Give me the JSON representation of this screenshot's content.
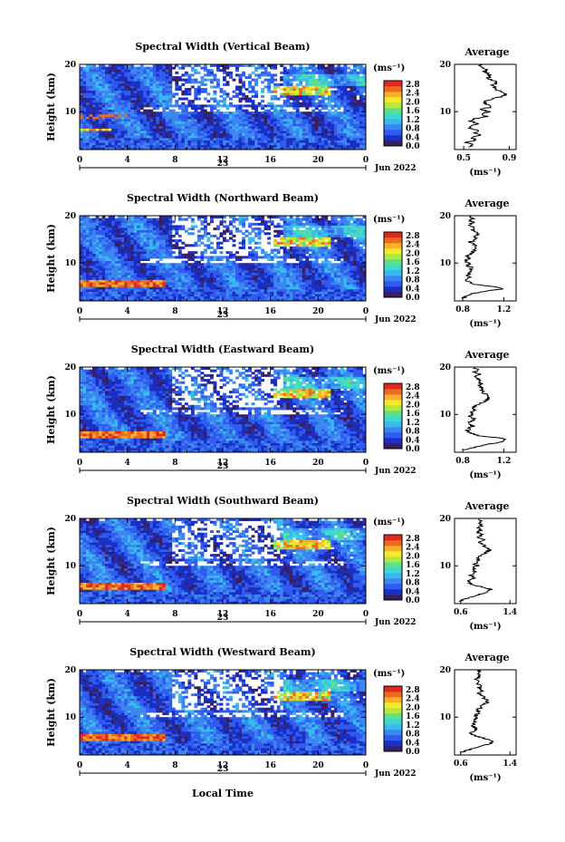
{
  "figure": {
    "x_label": "Local Time",
    "date_label": "Jun 2022",
    "day_label": "23"
  },
  "colorbar": {
    "unit": "(ms⁻¹)",
    "ticks": [
      "2.8",
      "2.4",
      "2.0",
      "1.6",
      "1.2",
      "0.8",
      "0.4",
      "0.0"
    ],
    "colors": [
      "#3a1f5e",
      "#1a2fc4",
      "#2f5bf0",
      "#3d86f2",
      "#38b9ef",
      "#3fd8d0",
      "#5ee08a",
      "#b4e83c",
      "#f2ea2c",
      "#f7b02a",
      "#f06a1e",
      "#e02a20"
    ]
  },
  "chart_data": [
    {
      "type": "heatmap",
      "title": "Spectral Width (Vertical Beam)",
      "ylabel": "Height (km)",
      "x_ticks": [
        "0",
        "4",
        "8",
        "12",
        "16",
        "20",
        "0"
      ],
      "y_ticks": [
        "20",
        "10"
      ],
      "xlim": [
        0,
        24
      ],
      "ylim": [
        2,
        20
      ],
      "average": {
        "title": "Average",
        "xlabel": "(ms⁻¹)",
        "x_ticks": [
          "0.5",
          "0.9"
        ],
        "y_ticks": [
          "20",
          "10"
        ],
        "xlim": [
          0.42,
          0.96
        ],
        "profile": [
          [
            2.5,
            0.55
          ],
          [
            3,
            0.58
          ],
          [
            3.5,
            0.52
          ],
          [
            4,
            0.62
          ],
          [
            4.5,
            0.56
          ],
          [
            5,
            0.66
          ],
          [
            5.5,
            0.6
          ],
          [
            6,
            0.64
          ],
          [
            6.5,
            0.55
          ],
          [
            7,
            0.58
          ],
          [
            7.5,
            0.62
          ],
          [
            8,
            0.56
          ],
          [
            8.5,
            0.6
          ],
          [
            9,
            0.7
          ],
          [
            9.5,
            0.66
          ],
          [
            10,
            0.72
          ],
          [
            10.5,
            0.65
          ],
          [
            11,
            0.74
          ],
          [
            11.5,
            0.7
          ],
          [
            12,
            0.68
          ],
          [
            12.5,
            0.72
          ],
          [
            13,
            0.8
          ],
          [
            13.5,
            0.88
          ],
          [
            14,
            0.84
          ],
          [
            14.5,
            0.8
          ],
          [
            15,
            0.78
          ],
          [
            15.5,
            0.74
          ],
          [
            16,
            0.8
          ],
          [
            16.5,
            0.76
          ],
          [
            17,
            0.7
          ],
          [
            17.5,
            0.74
          ],
          [
            18,
            0.72
          ],
          [
            18.5,
            0.68
          ],
          [
            19,
            0.7
          ],
          [
            19.5,
            0.66
          ],
          [
            20,
            0.64
          ]
        ]
      }
    },
    {
      "type": "heatmap",
      "title": "Spectral Width (Northward Beam)",
      "ylabel": "Height (km)",
      "x_ticks": [
        "0",
        "4",
        "8",
        "12",
        "16",
        "20",
        "0"
      ],
      "y_ticks": [
        "20",
        "10"
      ],
      "xlim": [
        0,
        24
      ],
      "ylim": [
        2,
        20
      ],
      "average": {
        "title": "Average",
        "xlabel": "(ms⁻¹)",
        "x_ticks": [
          "0.8",
          "1.2"
        ],
        "y_ticks": [
          "20",
          "10"
        ],
        "xlim": [
          0.72,
          1.32
        ],
        "profile": [
          [
            2.5,
            0.8
          ],
          [
            3,
            0.84
          ],
          [
            3.5,
            0.9
          ],
          [
            4,
            1.0
          ],
          [
            4.5,
            1.2
          ],
          [
            5,
            1.1
          ],
          [
            5.5,
            0.92
          ],
          [
            6,
            0.86
          ],
          [
            6.5,
            0.82
          ],
          [
            7,
            0.86
          ],
          [
            7.5,
            0.84
          ],
          [
            8,
            0.88
          ],
          [
            8.5,
            0.86
          ],
          [
            9,
            0.9
          ],
          [
            9.5,
            0.84
          ],
          [
            10,
            0.86
          ],
          [
            10.5,
            0.82
          ],
          [
            11,
            0.86
          ],
          [
            11.5,
            0.84
          ],
          [
            12,
            0.88
          ],
          [
            12.5,
            0.9
          ],
          [
            13,
            0.94
          ],
          [
            13.5,
            0.92
          ],
          [
            14,
            0.9
          ],
          [
            14.5,
            0.88
          ],
          [
            15,
            0.94
          ],
          [
            15.5,
            0.9
          ],
          [
            16,
            0.96
          ],
          [
            16.5,
            0.92
          ],
          [
            17,
            0.9
          ],
          [
            17.5,
            0.92
          ],
          [
            18,
            0.88
          ],
          [
            18.5,
            0.9
          ],
          [
            19,
            0.86
          ],
          [
            19.5,
            0.9
          ],
          [
            20,
            0.88
          ]
        ]
      }
    },
    {
      "type": "heatmap",
      "title": "Spectral Width (Eastward Beam)",
      "ylabel": "Height (km)",
      "x_ticks": [
        "0",
        "4",
        "8",
        "12",
        "16",
        "20",
        "0"
      ],
      "y_ticks": [
        "20",
        "10"
      ],
      "xlim": [
        0,
        24
      ],
      "ylim": [
        2,
        20
      ],
      "average": {
        "title": "Average",
        "xlabel": "(ms⁻¹)",
        "x_ticks": [
          "0.8",
          "1.2"
        ],
        "y_ticks": [
          "20",
          "10"
        ],
        "xlim": [
          0.72,
          1.32
        ],
        "profile": [
          [
            2.5,
            0.82
          ],
          [
            3,
            0.9
          ],
          [
            3.5,
            1.0
          ],
          [
            4,
            1.12
          ],
          [
            4.5,
            1.22
          ],
          [
            5,
            1.18
          ],
          [
            5.5,
            0.96
          ],
          [
            6,
            0.88
          ],
          [
            6.5,
            0.84
          ],
          [
            7,
            0.86
          ],
          [
            7.5,
            0.9
          ],
          [
            8,
            0.86
          ],
          [
            8.5,
            0.88
          ],
          [
            9,
            0.92
          ],
          [
            9.5,
            0.86
          ],
          [
            10,
            0.9
          ],
          [
            10.5,
            0.88
          ],
          [
            11,
            0.92
          ],
          [
            11.5,
            0.9
          ],
          [
            12,
            0.94
          ],
          [
            12.5,
            0.98
          ],
          [
            13,
            1.02
          ],
          [
            13.5,
            1.06
          ],
          [
            14,
            1.04
          ],
          [
            14.5,
            1.0
          ],
          [
            15,
            0.98
          ],
          [
            15.5,
            1.0
          ],
          [
            16,
            0.96
          ],
          [
            16.5,
            0.98
          ],
          [
            17,
            0.94
          ],
          [
            17.5,
            0.96
          ],
          [
            18,
            0.92
          ],
          [
            18.5,
            0.96
          ],
          [
            19,
            0.92
          ],
          [
            19.5,
            0.94
          ],
          [
            20,
            0.92
          ]
        ]
      }
    },
    {
      "type": "heatmap",
      "title": "Spectral Width (Southward Beam)",
      "ylabel": "Height (km)",
      "x_ticks": [
        "0",
        "4",
        "8",
        "12",
        "16",
        "20",
        "0"
      ],
      "y_ticks": [
        "20",
        "10"
      ],
      "xlim": [
        0,
        24
      ],
      "ylim": [
        2,
        20
      ],
      "average": {
        "title": "Average",
        "xlabel": "(ms⁻¹)",
        "x_ticks": [
          "0.6",
          "1.4"
        ],
        "y_ticks": [
          "20",
          "10"
        ],
        "xlim": [
          0.5,
          1.5
        ],
        "profile": [
          [
            2.5,
            0.6
          ],
          [
            3,
            0.66
          ],
          [
            3.5,
            0.8
          ],
          [
            4,
            0.92
          ],
          [
            4.5,
            1.02
          ],
          [
            5,
            1.08
          ],
          [
            5.5,
            0.96
          ],
          [
            6,
            0.8
          ],
          [
            6.5,
            0.72
          ],
          [
            7,
            0.76
          ],
          [
            7.5,
            0.82
          ],
          [
            8,
            0.76
          ],
          [
            8.5,
            0.8
          ],
          [
            9,
            0.84
          ],
          [
            9.5,
            0.8
          ],
          [
            10,
            0.86
          ],
          [
            10.5,
            0.82
          ],
          [
            11,
            0.9
          ],
          [
            11.5,
            0.86
          ],
          [
            12,
            0.92
          ],
          [
            12.5,
            0.98
          ],
          [
            13,
            1.04
          ],
          [
            13.5,
            1.06
          ],
          [
            14,
            1.0
          ],
          [
            14.5,
            0.96
          ],
          [
            15,
            0.92
          ],
          [
            15.5,
            0.96
          ],
          [
            16,
            0.9
          ],
          [
            16.5,
            0.94
          ],
          [
            17,
            0.88
          ],
          [
            17.5,
            0.92
          ],
          [
            18,
            0.9
          ],
          [
            18.5,
            0.94
          ],
          [
            19,
            0.9
          ],
          [
            19.5,
            0.92
          ],
          [
            20,
            0.9
          ]
        ]
      }
    },
    {
      "type": "heatmap",
      "title": "Spectral Width (Westward Beam)",
      "ylabel": "Height (km)",
      "x_ticks": [
        "0",
        "4",
        "8",
        "12",
        "16",
        "20",
        "0"
      ],
      "y_ticks": [
        "20",
        "10"
      ],
      "xlim": [
        0,
        24
      ],
      "ylim": [
        2,
        20
      ],
      "average": {
        "title": "Average",
        "xlabel": "(ms⁻¹)",
        "x_ticks": [
          "0.6",
          "1.4"
        ],
        "y_ticks": [
          "20",
          "10"
        ],
        "xlim": [
          0.5,
          1.5
        ],
        "profile": [
          [
            2.5,
            0.62
          ],
          [
            3,
            0.7
          ],
          [
            3.5,
            0.82
          ],
          [
            4,
            0.98
          ],
          [
            4.5,
            1.1
          ],
          [
            5,
            1.14
          ],
          [
            5.5,
            1.0
          ],
          [
            6,
            0.84
          ],
          [
            6.5,
            0.76
          ],
          [
            7,
            0.8
          ],
          [
            7.5,
            0.86
          ],
          [
            8,
            0.8
          ],
          [
            8.5,
            0.82
          ],
          [
            9,
            0.86
          ],
          [
            9.5,
            0.82
          ],
          [
            10,
            0.88
          ],
          [
            10.5,
            0.84
          ],
          [
            11,
            0.9
          ],
          [
            11.5,
            0.88
          ],
          [
            12,
            0.92
          ],
          [
            12.5,
            0.96
          ],
          [
            13,
            1.02
          ],
          [
            13.5,
            1.04
          ],
          [
            14,
            0.98
          ],
          [
            14.5,
            0.94
          ],
          [
            15,
            0.9
          ],
          [
            15.5,
            0.94
          ],
          [
            16,
            0.88
          ],
          [
            16.5,
            0.92
          ],
          [
            17,
            0.88
          ],
          [
            17.5,
            0.9
          ],
          [
            18,
            0.86
          ],
          [
            18.5,
            0.9
          ],
          [
            19,
            0.88
          ],
          [
            19.5,
            0.9
          ],
          [
            20,
            0.88
          ]
        ]
      }
    }
  ]
}
